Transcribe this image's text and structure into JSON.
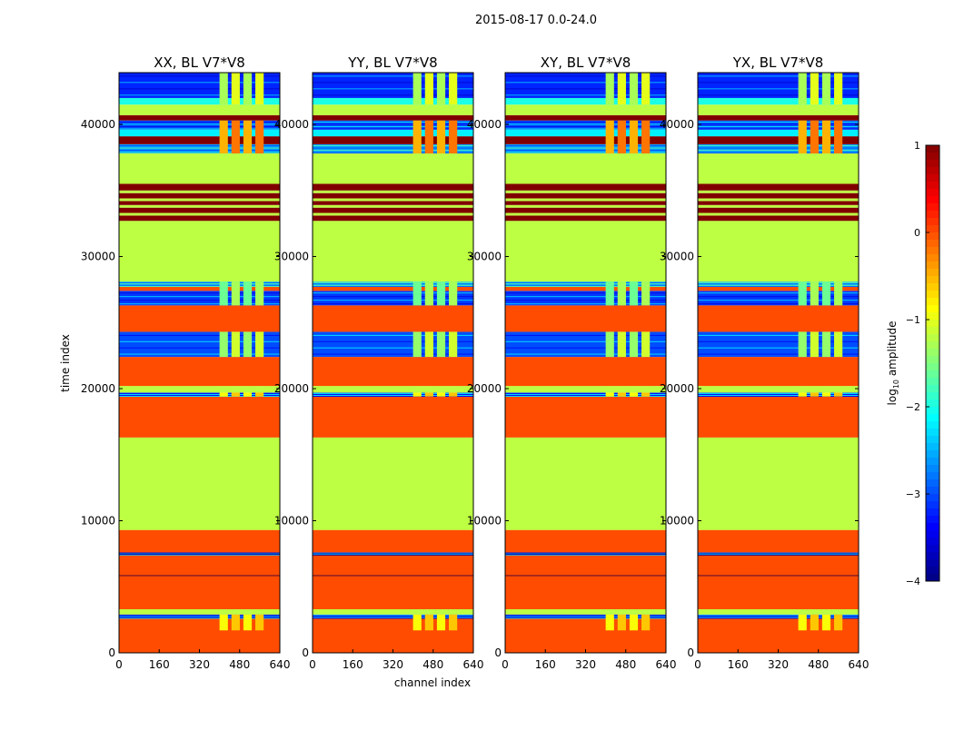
{
  "chart_data": {
    "type": "heatmap",
    "suptitle": "2015-08-17 0.0-24.0",
    "xlabel": "channel index",
    "ylabel": "time index",
    "xlim": [
      0,
      640
    ],
    "ylim": [
      0,
      43920
    ],
    "xticks": [
      "0",
      "160",
      "320",
      "480",
      "640"
    ],
    "yticks": [
      "0",
      "10000",
      "20000",
      "30000",
      "40000"
    ],
    "colorbar": {
      "label_prefix": "log",
      "label_sub": "10",
      "label_suffix": " amplitude",
      "range": [
        -4,
        1
      ],
      "ticks": [
        "1",
        "0",
        "−1",
        "−2",
        "−3",
        "−4"
      ],
      "colormap": "jet"
    },
    "panels": [
      {
        "title": "XX, BL V7*V8"
      },
      {
        "title": "YY, BL V7*V8"
      },
      {
        "title": "XY, BL V7*V8"
      },
      {
        "title": "YX, BL V7*V8"
      }
    ],
    "bands": [
      [
        0,
        2600,
        0.0
      ],
      [
        2600,
        2900,
        -3.2
      ],
      [
        2900,
        3300,
        -1.2
      ],
      [
        3300,
        5800,
        0.0
      ],
      [
        5800,
        5900,
        1.0
      ],
      [
        5900,
        7400,
        0.0
      ],
      [
        7400,
        7600,
        -3.4
      ],
      [
        7600,
        9300,
        0.0
      ],
      [
        9300,
        16300,
        -1.2
      ],
      [
        16300,
        19400,
        0.0
      ],
      [
        19400,
        19700,
        -3.0
      ],
      [
        19700,
        20200,
        -1.2
      ],
      [
        20200,
        22400,
        0.0
      ],
      [
        22400,
        24300,
        -3.0
      ],
      [
        24300,
        26300,
        0.0
      ],
      [
        26300,
        27400,
        -3.1
      ],
      [
        27400,
        27700,
        0.0
      ],
      [
        27700,
        28100,
        -2.5
      ],
      [
        28100,
        32700,
        -1.2
      ],
      [
        32700,
        33100,
        1.0
      ],
      [
        33100,
        33300,
        -1.2
      ],
      [
        33300,
        33700,
        1.0
      ],
      [
        33700,
        33900,
        -1.2
      ],
      [
        33900,
        34200,
        1.0
      ],
      [
        34200,
        34400,
        -1.2
      ],
      [
        34400,
        34800,
        1.0
      ],
      [
        34800,
        35000,
        -1.2
      ],
      [
        35000,
        35500,
        1.0
      ],
      [
        35500,
        37800,
        -1.2
      ],
      [
        37800,
        38500,
        -2.6
      ],
      [
        38500,
        39100,
        1.0
      ],
      [
        39100,
        39600,
        -2.2
      ],
      [
        39600,
        40300,
        -3.0
      ],
      [
        40300,
        40700,
        1.0
      ],
      [
        40700,
        41500,
        -1.2
      ],
      [
        41500,
        42000,
        -2.0
      ],
      [
        42000,
        43920,
        -3.2
      ]
    ],
    "rfi_channel_range": [
      400,
      590
    ],
    "rfi_bands": [
      [
        1700,
        2900,
        -0.9
      ],
      [
        19400,
        19700,
        -0.9
      ],
      [
        22400,
        24300,
        -1.4
      ],
      [
        26300,
        28100,
        -1.6
      ],
      [
        37800,
        40300,
        -0.5
      ],
      [
        41500,
        43920,
        -1.3
      ]
    ]
  }
}
